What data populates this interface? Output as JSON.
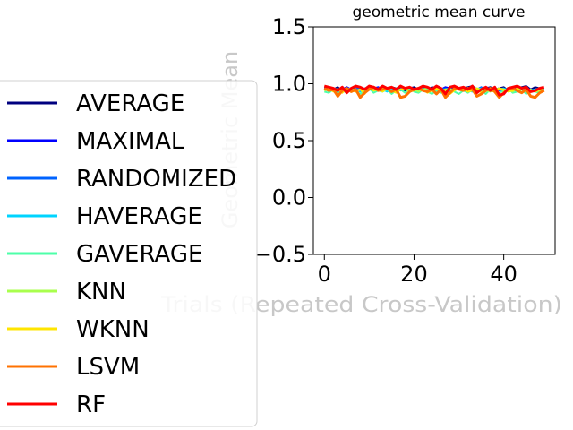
{
  "chart_data": {
    "type": "line",
    "title": "geometric mean curve",
    "xlabel": "Trials (Repeated Cross-Validation)",
    "ylabel": "Geometric Mean",
    "xlim": [
      -2.45,
      51.45
    ],
    "ylim": [
      -0.5,
      1.5
    ],
    "xticks": [
      0,
      20,
      40
    ],
    "yticks": [
      -0.5,
      0.0,
      0.5,
      1.0,
      1.5
    ],
    "xtick_labels": [
      "0",
      "20",
      "40"
    ],
    "ytick_labels": [
      "−0.5",
      "0.0",
      "0.5",
      "1.0",
      "1.5"
    ],
    "grid": false,
    "legend_position": "left, outside plot",
    "x": [
      0,
      1,
      2,
      3,
      4,
      5,
      6,
      7,
      8,
      9,
      10,
      11,
      12,
      13,
      14,
      15,
      16,
      17,
      18,
      19,
      20,
      21,
      22,
      23,
      24,
      25,
      26,
      27,
      28,
      29,
      30,
      31,
      32,
      33,
      34,
      35,
      36,
      37,
      38,
      39,
      40,
      41,
      42,
      43,
      44,
      45,
      46,
      47,
      48,
      49
    ],
    "series": [
      {
        "name": "AVERAGE",
        "color": "#00007f",
        "values": [
          0.97,
          0.96,
          0.95,
          0.97,
          0.93,
          0.95,
          0.96,
          0.94,
          0.97,
          0.95,
          0.96,
          0.97,
          0.95,
          0.94,
          0.96,
          0.97,
          0.96,
          0.95,
          0.94,
          0.96,
          0.97,
          0.95,
          0.96,
          0.94,
          0.97,
          0.96,
          0.95,
          0.94,
          0.96,
          0.97,
          0.95,
          0.96,
          0.97,
          0.98,
          0.95,
          0.94,
          0.96,
          0.97,
          0.95,
          0.96,
          0.97,
          0.94,
          0.96,
          0.95,
          0.97,
          0.98,
          0.95,
          0.97,
          0.96,
          0.95
        ]
      },
      {
        "name": "MAXIMAL",
        "color": "#0000ff",
        "values": [
          0.96,
          0.95,
          0.96,
          0.94,
          0.95,
          0.97,
          0.95,
          0.96,
          0.94,
          0.96,
          0.95,
          0.96,
          0.97,
          0.95,
          0.94,
          0.96,
          0.95,
          0.97,
          0.96,
          0.95,
          0.94,
          0.96,
          0.97,
          0.95,
          0.96,
          0.94,
          0.95,
          0.97,
          0.96,
          0.95,
          0.96,
          0.97,
          0.95,
          0.96,
          0.94,
          0.95,
          0.97,
          0.96,
          0.95,
          0.96,
          0.94,
          0.95,
          0.96,
          0.97,
          0.95,
          0.96,
          0.95,
          0.94,
          0.96,
          0.95
        ]
      },
      {
        "name": "RANDOMIZED",
        "color": "#0063ff",
        "values": [
          0.95,
          0.96,
          0.94,
          0.95,
          0.96,
          0.94,
          0.95,
          0.97,
          0.95,
          0.94,
          0.96,
          0.95,
          0.94,
          0.96,
          0.95,
          0.96,
          0.94,
          0.95,
          0.96,
          0.97,
          0.95,
          0.94,
          0.96,
          0.95,
          0.94,
          0.96,
          0.95,
          0.96,
          0.94,
          0.95,
          0.96,
          0.95,
          0.94,
          0.96,
          0.95,
          0.97,
          0.94,
          0.95,
          0.96,
          0.94,
          0.95,
          0.96,
          0.95,
          0.94,
          0.96,
          0.95,
          0.94,
          0.95,
          0.96,
          0.95
        ]
      },
      {
        "name": "HAVERAGE",
        "color": "#00d4ff",
        "values": [
          0.94,
          0.95,
          0.96,
          0.93,
          0.95,
          0.96,
          0.94,
          0.95,
          0.93,
          0.96,
          0.95,
          0.94,
          0.96,
          0.95,
          0.93,
          0.95,
          0.96,
          0.94,
          0.95,
          0.96,
          0.94,
          0.93,
          0.95,
          0.96,
          0.94,
          0.95,
          0.96,
          0.93,
          0.95,
          0.94,
          0.96,
          0.95,
          0.94,
          0.93,
          0.95,
          0.96,
          0.94,
          0.95,
          0.93,
          0.95,
          0.96,
          0.94,
          0.95,
          0.93,
          0.96,
          0.95,
          0.94,
          0.95,
          0.96,
          0.94
        ]
      },
      {
        "name": "GAVERAGE",
        "color": "#4dffa9",
        "values": [
          0.93,
          0.92,
          0.95,
          0.91,
          0.94,
          0.92,
          0.95,
          0.93,
          0.91,
          0.94,
          0.96,
          0.92,
          0.94,
          0.93,
          0.95,
          0.91,
          0.94,
          0.95,
          0.92,
          0.96,
          0.93,
          0.92,
          0.95,
          0.93,
          0.91,
          0.94,
          0.92,
          0.95,
          0.96,
          0.93,
          0.91,
          0.94,
          0.92,
          0.95,
          0.93,
          0.94,
          0.91,
          0.95,
          0.93,
          0.92,
          0.94,
          0.96,
          0.92,
          0.93,
          0.95,
          0.91,
          0.94,
          0.93,
          0.92,
          0.95
        ]
      },
      {
        "name": "KNN",
        "color": "#a9ff4d",
        "values": [
          0.95,
          0.94,
          0.96,
          0.95,
          0.93,
          0.95,
          0.96,
          0.94,
          0.95,
          0.93,
          0.96,
          0.95,
          0.94,
          0.96,
          0.95,
          0.94,
          0.93,
          0.95,
          0.96,
          0.94,
          0.95,
          0.93,
          0.95,
          0.96,
          0.94,
          0.95,
          0.96,
          0.93,
          0.95,
          0.94,
          0.96,
          0.95,
          0.93,
          0.94,
          0.96,
          0.95,
          0.94,
          0.93,
          0.95,
          0.96,
          0.94,
          0.95,
          0.93,
          0.96,
          0.95,
          0.94,
          0.95,
          0.93,
          0.94,
          0.95
        ]
      },
      {
        "name": "WKNN",
        "color": "#ffe500",
        "values": [
          0.94,
          0.96,
          0.93,
          0.95,
          0.92,
          0.96,
          0.94,
          0.93,
          0.95,
          0.91,
          0.96,
          0.94,
          0.95,
          0.93,
          0.96,
          0.94,
          0.92,
          0.95,
          0.96,
          0.93,
          0.94,
          0.96,
          0.95,
          0.92,
          0.94,
          0.96,
          0.93,
          0.95,
          0.91,
          0.94,
          0.96,
          0.95,
          0.93,
          0.94,
          0.96,
          0.92,
          0.95,
          0.94,
          0.93,
          0.96,
          0.95,
          0.93,
          0.94,
          0.96,
          0.92,
          0.95,
          0.94,
          0.93,
          0.95,
          0.94
        ]
      },
      {
        "name": "LSVM",
        "color": "#ff7200",
        "values": [
          0.96,
          0.94,
          0.95,
          0.89,
          0.94,
          0.96,
          0.93,
          0.95,
          0.88,
          0.92,
          0.95,
          0.97,
          0.94,
          0.95,
          0.96,
          0.93,
          0.95,
          0.88,
          0.89,
          0.93,
          0.95,
          0.96,
          0.94,
          0.93,
          0.95,
          0.91,
          0.95,
          0.88,
          0.92,
          0.96,
          0.95,
          0.94,
          0.96,
          0.95,
          0.89,
          0.91,
          0.94,
          0.96,
          0.93,
          0.88,
          0.92,
          0.95,
          0.96,
          0.94,
          0.92,
          0.95,
          0.89,
          0.88,
          0.92,
          0.94
        ]
      },
      {
        "name": "RF",
        "color": "#ff0000",
        "values": [
          0.98,
          0.97,
          0.96,
          0.94,
          0.97,
          0.92,
          0.96,
          0.98,
          0.97,
          0.95,
          0.98,
          0.97,
          0.95,
          0.98,
          0.96,
          0.97,
          0.95,
          0.98,
          0.96,
          0.97,
          0.95,
          0.96,
          0.98,
          0.97,
          0.95,
          0.98,
          0.96,
          0.91,
          0.97,
          0.98,
          0.96,
          0.97,
          0.95,
          0.98,
          0.92,
          0.95,
          0.97,
          0.94,
          0.97,
          0.9,
          0.91,
          0.96,
          0.97,
          0.98,
          0.96,
          0.97,
          0.93,
          0.94,
          0.96,
          0.97
        ]
      }
    ]
  }
}
